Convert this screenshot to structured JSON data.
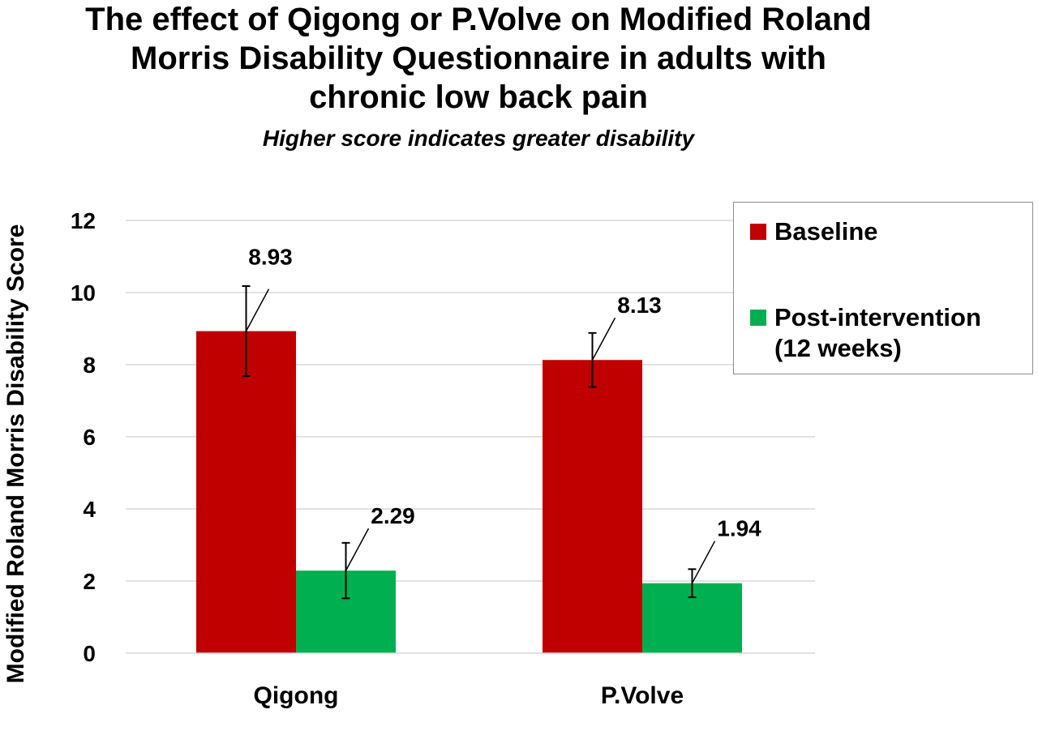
{
  "chart_data": {
    "type": "bar",
    "title": "The effect of Qigong or P.Volve on Modified Roland Morris Disability Questionnaire in adults with chronic low back pain",
    "title_lines": [
      "The effect of Qigong or P.Volve on Modified Roland",
      "Morris Disability Questionnaire in adults with",
      "chronic low back pain"
    ],
    "subtitle": "Higher score indicates greater disability",
    "xlabel": "",
    "ylabel": "Modified Roland Morris Disability Score",
    "ylim": [
      0,
      12
    ],
    "yticks": [
      0,
      2,
      4,
      6,
      8,
      10,
      12
    ],
    "grid": true,
    "legend_position": "top-right",
    "categories": [
      "Qigong",
      "P.Volve"
    ],
    "series": [
      {
        "name": "Baseline",
        "color": "#c00000",
        "values": [
          8.93,
          8.13
        ],
        "error_low": [
          7.68,
          7.38
        ],
        "error_high": [
          10.18,
          8.88
        ],
        "labels": [
          "8.93",
          "8.13"
        ]
      },
      {
        "name": "Post-intervention (12 weeks)",
        "name_lines": [
          "Post-intervention",
          "(12 weeks)"
        ],
        "color": "#00b050",
        "values": [
          2.29,
          1.94
        ],
        "error_low": [
          1.52,
          1.55
        ],
        "error_high": [
          3.06,
          2.33
        ],
        "labels": [
          "2.29",
          "1.94"
        ]
      }
    ]
  }
}
